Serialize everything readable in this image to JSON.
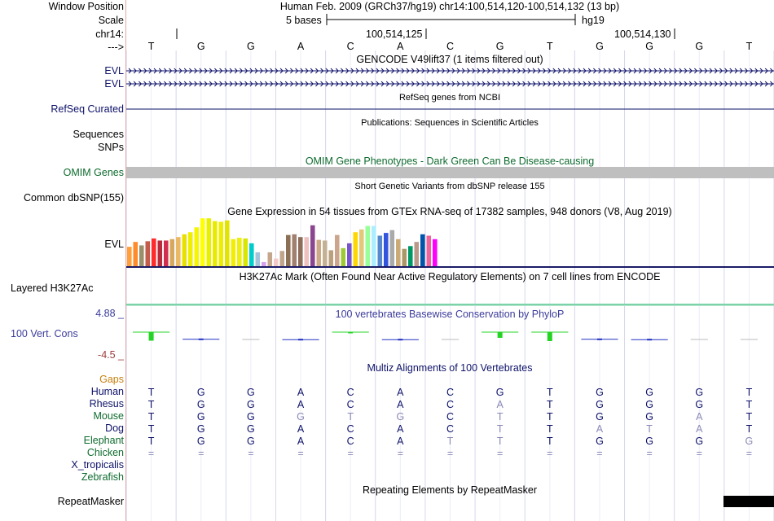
{
  "header": {
    "window_position_label": "Window Position",
    "window_position_text": "Human Feb. 2009 (GRCh37/hg19)   chr14:100,514,120-100,514,132 (13 bp)",
    "scale_label": "Scale",
    "scale_text": "5 bases",
    "scale_assembly": "hg19",
    "chrom_label": "chr14:",
    "coord_1": "100,514,125",
    "coord_2": "100,514,130",
    "strand_label": "--->"
  },
  "bases": [
    "T",
    "G",
    "G",
    "A",
    "C",
    "A",
    "C",
    "G",
    "T",
    "G",
    "G",
    "G",
    "T"
  ],
  "tracks": {
    "gencode_title": "GENCODE V49lift37 (1 items filtered out)",
    "evl_label_1": "EVL",
    "evl_label_2": "EVL",
    "refseq_title": "RefSeq genes from NCBI",
    "refseq_label": "RefSeq Curated",
    "publications_title": "Publications: Sequences in Scientific Articles",
    "sequences_label": "Sequences",
    "snps_label": "SNPs",
    "omim_title": "OMIM Gene Phenotypes - Dark Green Can Be Disease-causing",
    "omim_label": "OMIM Genes",
    "dbsnp_title": "Short Genetic Variants from dbSNP release 155",
    "dbsnp_label": "Common dbSNP(155)",
    "gtex_title": "Gene Expression in 54 tissues from GTEx RNA-seq of 17382 samples, 948 donors (V8, Aug 2019)",
    "gtex_label": "EVL",
    "h3k27ac_title": "H3K27Ac Mark (Often Found Near Active Regulatory Elements) on 7 cell lines from ENCODE",
    "h3k27ac_label": "Layered H3K27Ac",
    "phylop_title": "100 vertebrates Basewise Conservation by PhyloP",
    "phylop_max": "4.88 _",
    "phylop_label": "100 Vert. Cons",
    "phylop_min": "-4.5 _",
    "multiz_title": "Multiz Alignments of 100 Vertebrates",
    "gaps_label": "Gaps",
    "repeat_title": "Repeating Elements by RepeatMasker",
    "repeat_label": "RepeatMasker"
  },
  "gtex_bars": [
    0.28,
    0.35,
    0.3,
    0.36,
    0.4,
    0.37,
    0.37,
    0.39,
    0.42,
    0.46,
    0.49,
    0.56,
    0.69,
    0.69,
    0.65,
    0.64,
    0.66,
    0.39,
    0.41,
    0.4,
    0.33,
    0.2,
    0.06,
    0.2,
    0.11,
    0.22,
    0.45,
    0.46,
    0.42,
    0.42,
    0.59,
    0.38,
    0.37,
    0.23,
    0.45,
    0.26,
    0.33,
    0.49,
    0.53,
    0.58,
    0.58,
    0.44,
    0.48,
    0.52,
    0.39,
    0.25,
    0.29,
    0.35,
    0.46,
    0.44,
    0.39
  ],
  "gtex_colors": [
    "#ff9e3b",
    "#fe8b2c",
    "#9a8f6b",
    "#c45c4b",
    "#ff2a2a",
    "#b72b3c",
    "#d12d4f",
    "#d6a85c",
    "#ebb866",
    "#e8e000",
    "#eeee00",
    "#f5f500",
    "#ffff00",
    "#e8f000",
    "#eaea00",
    "#eded00",
    "#e3e300",
    "#f1ee00",
    "#eeee11",
    "#d9e600",
    "#00cccc",
    "#a3c3da",
    "#d5a0f0",
    "#c4a68c",
    "#f2c9c8",
    "#c0a48b",
    "#8b7055",
    "#a18070",
    "#8b6d5a",
    "#eec0c0",
    "#8a4790",
    "#ccaa88",
    "#c4b193",
    "#bba080",
    "#cba68c",
    "#9ccb33",
    "#7755cc",
    "#ffd700",
    "#e3c87a",
    "#99ff99",
    "#aaeeff",
    "#5588cc",
    "#3355dd",
    "#aaaaaa",
    "#ccaa77",
    "#aa9966",
    "#009966",
    "#bb9988",
    "#0055aa",
    "#ee6699",
    "#ff00ff"
  ],
  "multiz_species": [
    "Human",
    "Rhesus",
    "Mouse",
    "Dog",
    "Elephant",
    "Chicken",
    "X_tropicalis",
    "Zebrafish"
  ],
  "multiz_rows": [
    [
      "T",
      "G",
      "G",
      "A",
      "C",
      "A",
      "C",
      "G",
      "T",
      "G",
      "G",
      "G",
      "T"
    ],
    [
      "T",
      "G",
      "G",
      "A",
      "C",
      "A",
      "C",
      "A",
      "T",
      "G",
      "G",
      "G",
      "T"
    ],
    [
      "T",
      "G",
      "G",
      "G",
      "T",
      "G",
      "C",
      "T",
      "T",
      "G",
      "G",
      "A",
      "T"
    ],
    [
      "T",
      "G",
      "G",
      "A",
      "C",
      "A",
      "C",
      "T",
      "T",
      "A",
      "T",
      "A",
      "T"
    ],
    [
      "T",
      "G",
      "G",
      "A",
      "C",
      "A",
      "T",
      "T",
      "T",
      "G",
      "G",
      "G",
      "G"
    ],
    [
      "=",
      "=",
      "=",
      "=",
      "=",
      "=",
      "=",
      "=",
      "=",
      "=",
      "=",
      "=",
      "="
    ]
  ],
  "multiz_match": [
    [
      1,
      1,
      1,
      1,
      1,
      1,
      1,
      1,
      1,
      1,
      1,
      1,
      1
    ],
    [
      1,
      1,
      1,
      1,
      1,
      1,
      1,
      0,
      1,
      1,
      1,
      1,
      1
    ],
    [
      1,
      1,
      1,
      0,
      0,
      0,
      1,
      0,
      1,
      1,
      1,
      0,
      1
    ],
    [
      1,
      1,
      1,
      1,
      1,
      1,
      1,
      0,
      1,
      0,
      0,
      0,
      1
    ],
    [
      1,
      1,
      1,
      1,
      1,
      1,
      0,
      0,
      1,
      1,
      1,
      1,
      0
    ],
    [
      0,
      0,
      0,
      0,
      0,
      0,
      0,
      0,
      0,
      0,
      0,
      0,
      0
    ]
  ],
  "phylop_values": [
    2.1,
    -0.2,
    0,
    -0.3,
    0.3,
    -0.3,
    0,
    1.4,
    2.2,
    -0.2,
    -0.3,
    0,
    0
  ],
  "colors": {
    "navy": "#0e1269",
    "green": "#0e6b2e",
    "omim_bar": "#bfbfbf",
    "phylop_pos": "#24d424",
    "phylop_neg": "#2030c0",
    "gridline": "#d6d6ee"
  }
}
